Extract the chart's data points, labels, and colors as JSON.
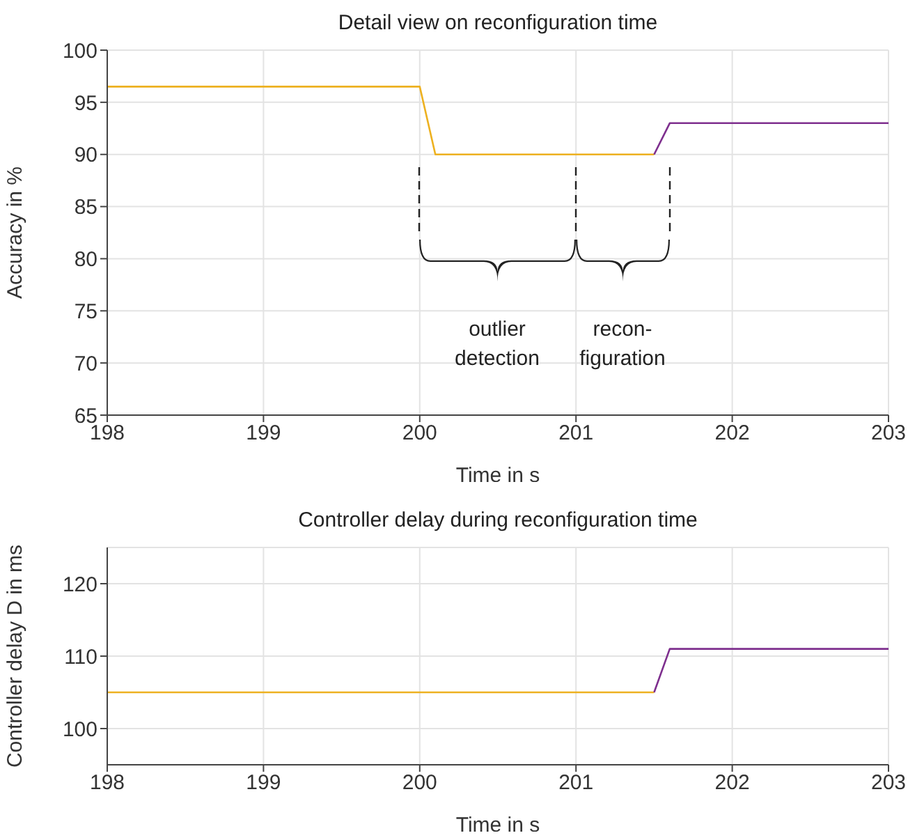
{
  "chart_data": [
    {
      "type": "line",
      "title": "Detail view on reconfiguration time",
      "xlabel": "Time in s",
      "ylabel": "Accuracy in %",
      "xlim": [
        198,
        203
      ],
      "xticks": [
        198,
        199,
        200,
        201,
        202,
        203
      ],
      "ylim": [
        65,
        100
      ],
      "yticks": [
        65,
        70,
        75,
        80,
        85,
        90,
        95,
        100
      ],
      "grid": true,
      "marker": "none",
      "line_style": "solid",
      "series": [
        {
          "color": "#edb120",
          "x": [
            198,
            200,
            200.1,
            201.5
          ],
          "values": [
            96.5,
            96.5,
            90,
            90
          ]
        },
        {
          "color": "#7e2f8e",
          "x": [
            201.5,
            201.6,
            203
          ],
          "values": [
            90,
            93,
            93
          ]
        }
      ],
      "annotations": [
        "outlier\ndetection",
        "recon-\nfiguration"
      ]
    },
    {
      "type": "line",
      "title": "Controller delay during reconfiguration time",
      "xlabel": "Time in s",
      "ylabel": "Controller delay D in ms",
      "xlim": [
        198,
        203
      ],
      "xticks": [
        198,
        199,
        200,
        201,
        202,
        203
      ],
      "ylim": [
        95,
        125
      ],
      "yticks": [
        100,
        110,
        120
      ],
      "grid": true,
      "marker": "none",
      "line_style": "solid",
      "series": [
        {
          "color": "#edb120",
          "x": [
            198,
            201.5
          ],
          "values": [
            105,
            105
          ]
        },
        {
          "color": "#7e2f8e",
          "x": [
            201.5,
            201.6,
            203
          ],
          "values": [
            105,
            111,
            111
          ]
        }
      ]
    }
  ]
}
